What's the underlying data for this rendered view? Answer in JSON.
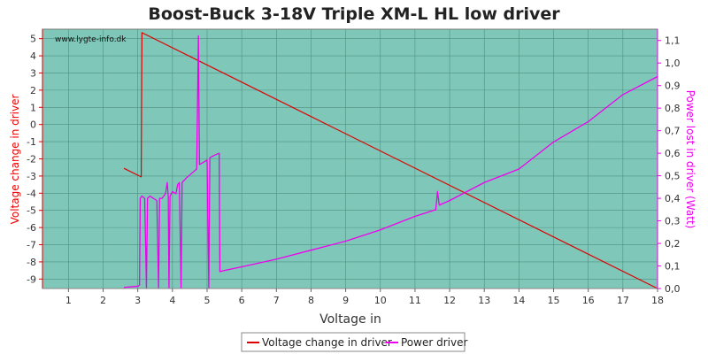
{
  "chart_data": {
    "type": "line",
    "title": "Boost-Buck 3-18V Triple XM-L HL low driver",
    "watermark": "www.lygte-info.dk",
    "xlabel": "Voltage in",
    "ylabel_left": "Voltage change in driver",
    "ylabel_right": "Power lost in driver (Watt)",
    "xlim": [
      0.25,
      18
    ],
    "ylim_left": [
      -9.55,
      5.55
    ],
    "ylim_right": [
      0,
      1.15
    ],
    "x_ticks": [
      1,
      2,
      3,
      4,
      5,
      6,
      7,
      8,
      9,
      10,
      11,
      12,
      13,
      14,
      15,
      16,
      17,
      18
    ],
    "y_ticks_left": [
      5,
      4,
      3,
      2,
      1,
      0,
      -1,
      -2,
      -3,
      -4,
      -5,
      -6,
      -7,
      -8,
      -9
    ],
    "y_ticks_right": [
      "0,0",
      "0,1",
      "0,2",
      "0,3",
      "0,4",
      "0,5",
      "0,6",
      "0,7",
      "0,8",
      "0,9",
      "1,0",
      "1,1"
    ],
    "y_ticks_right_values": [
      0,
      0.1,
      0.2,
      0.3,
      0.4,
      0.5,
      0.6,
      0.7,
      0.8,
      0.9,
      1.0,
      1.1
    ],
    "grid": true,
    "legend_position": "bottom",
    "colors": {
      "background": "#7fc8b9",
      "grid": "#4f8f80",
      "voltage": "#dd0000",
      "power": "#ee00ee"
    },
    "series": [
      {
        "name": "Voltage change in driver",
        "axis": "left",
        "color": "#dd0000",
        "points": [
          [
            2.6,
            -2.55
          ],
          [
            3.1,
            -3.05
          ],
          [
            3.12,
            5.35
          ],
          [
            18.0,
            -9.55
          ]
        ]
      },
      {
        "name": "Power driver",
        "axis": "right",
        "color": "#ee00ee",
        "points": [
          [
            2.6,
            0.005
          ],
          [
            3.0,
            0.01
          ],
          [
            3.05,
            0.015
          ],
          [
            3.07,
            0.4
          ],
          [
            3.12,
            0.41
          ],
          [
            3.2,
            0.4
          ],
          [
            3.25,
            0.0
          ],
          [
            3.28,
            0.4
          ],
          [
            3.35,
            0.41
          ],
          [
            3.45,
            0.4
          ],
          [
            3.55,
            0.39
          ],
          [
            3.6,
            0.0
          ],
          [
            3.63,
            0.4
          ],
          [
            3.7,
            0.4
          ],
          [
            3.8,
            0.42
          ],
          [
            3.85,
            0.47
          ],
          [
            3.88,
            0.41
          ],
          [
            3.9,
            0.0
          ],
          [
            3.93,
            0.41
          ],
          [
            4.0,
            0.43
          ],
          [
            4.1,
            0.42
          ],
          [
            4.15,
            0.46
          ],
          [
            4.2,
            0.47
          ],
          [
            4.25,
            0.0
          ],
          [
            4.28,
            0.47
          ],
          [
            4.4,
            0.49
          ],
          [
            4.55,
            0.51
          ],
          [
            4.7,
            0.53
          ],
          [
            4.75,
            1.12
          ],
          [
            4.78,
            0.55
          ],
          [
            4.9,
            0.56
          ],
          [
            5.0,
            0.57
          ],
          [
            5.05,
            0.0
          ],
          [
            5.08,
            0.58
          ],
          [
            5.2,
            0.59
          ],
          [
            5.35,
            0.6
          ],
          [
            5.37,
            0.075
          ],
          [
            5.5,
            0.08
          ],
          [
            6.0,
            0.096
          ],
          [
            7.0,
            0.13
          ],
          [
            8.0,
            0.17
          ],
          [
            9.0,
            0.21
          ],
          [
            10.0,
            0.26
          ],
          [
            11.0,
            0.32
          ],
          [
            11.6,
            0.35
          ],
          [
            11.65,
            0.43
          ],
          [
            11.7,
            0.37
          ],
          [
            12.0,
            0.39
          ],
          [
            13.0,
            0.47
          ],
          [
            14.0,
            0.53
          ],
          [
            15.0,
            0.65
          ],
          [
            16.0,
            0.74
          ],
          [
            17.0,
            0.86
          ],
          [
            18.0,
            0.94
          ]
        ]
      }
    ]
  }
}
